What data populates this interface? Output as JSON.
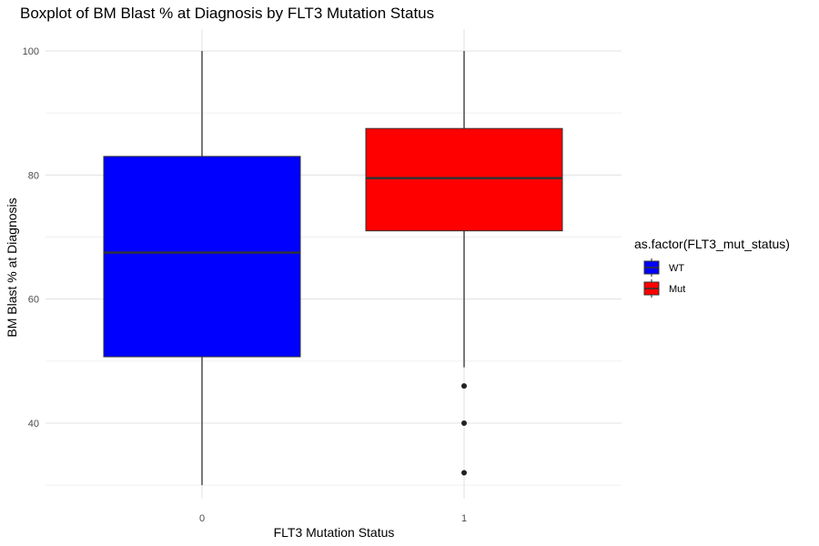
{
  "chart_data": {
    "type": "boxplot",
    "title": "Boxplot of BM Blast % at Diagnosis by FLT3 Mutation Status",
    "xlabel": "FLT3 Mutation Status",
    "ylabel": "BM Blast % at Diagnosis",
    "categories": [
      "0",
      "1"
    ],
    "ylim": [
      27,
      103
    ],
    "yticks": [
      40,
      60,
      80,
      100
    ],
    "grid": true,
    "legend": {
      "title": "as.factor(FLT3_mut_status)",
      "position": "right",
      "entries": [
        {
          "label": "WT",
          "color": "#0000ff"
        },
        {
          "label": "Mut",
          "color": "#ff0000"
        }
      ]
    },
    "boxes": [
      {
        "category": "0",
        "fill": "#0000ff",
        "min": 30,
        "q1": 50.7,
        "median": 67.5,
        "q3": 83,
        "max": 100,
        "outliers": []
      },
      {
        "category": "1",
        "fill": "#ff0000",
        "min": 49,
        "q1": 71,
        "median": 79.5,
        "q3": 87.5,
        "max": 100,
        "outliers": [
          46,
          40,
          32
        ]
      }
    ]
  }
}
